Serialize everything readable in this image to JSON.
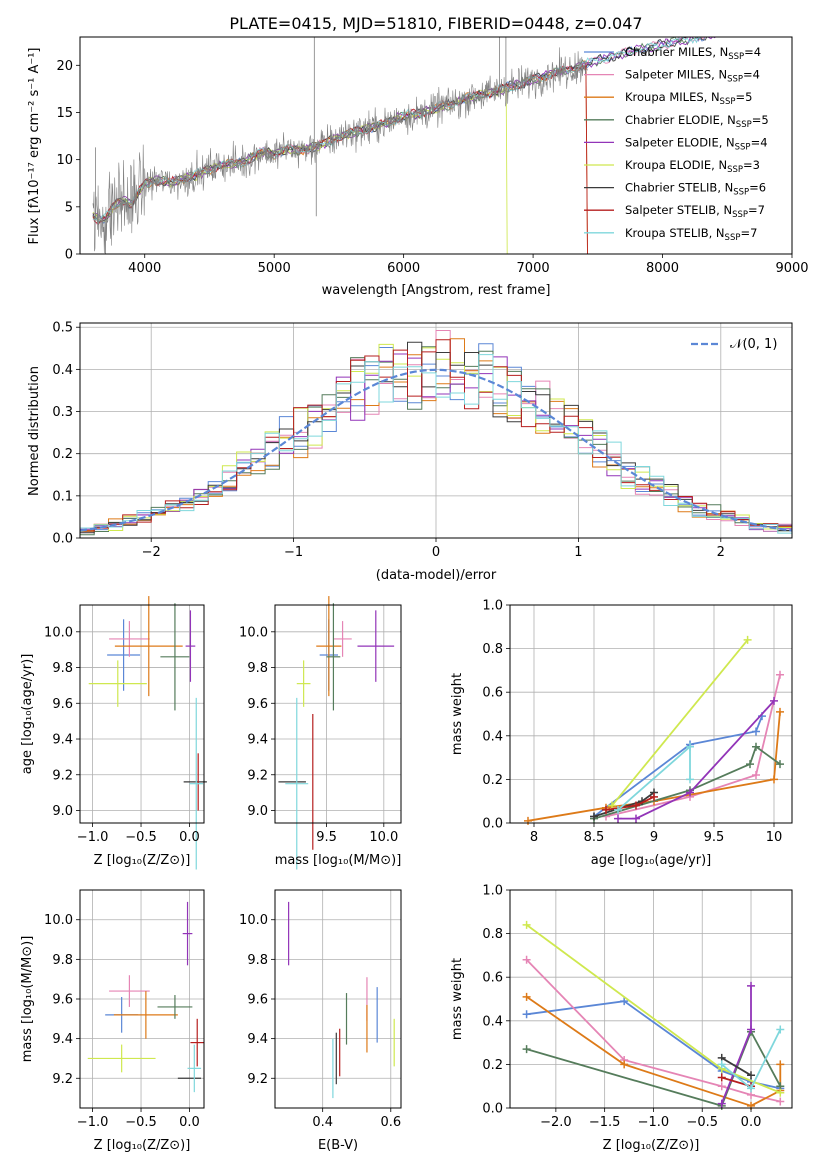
{
  "figure": {
    "title": "PLATE=0415, MJD=51810, FIBERID=0448, z=0.047"
  },
  "colors": {
    "Chabrier MILES": "#5b87d6",
    "Salpeter MILES": "#e585b5",
    "Kroupa MILES": "#dd7a18",
    "Chabrier ELODIE": "#557c5b",
    "Salpeter ELODIE": "#9234b8",
    "Kroupa ELODIE": "#cfe84f",
    "Chabrier STELIB": "#3b3b3b",
    "Salpeter STELIB": "#b61f1f",
    "Kroupa STELIB": "#7fd7dc",
    "data": "#808080",
    "gauss": "#5b87d6",
    "grid": "#b0b0b0"
  },
  "chart_data": [
    {
      "id": "spectrum",
      "type": "line",
      "title": "PLATE=0415, MJD=51810, FIBERID=0448, z=0.047",
      "xlabel": "wavelength [Angstrom, rest frame]",
      "ylabel": "Flux [fλ10⁻¹⁷ erg cm⁻² s⁻¹ A⁻¹]",
      "xlim": [
        3500,
        9000
      ],
      "ylim": [
        0,
        23
      ],
      "xticks": [
        4000,
        5000,
        6000,
        7000,
        8000,
        9000
      ],
      "yticks": [
        0,
        5,
        10,
        15,
        20
      ],
      "grid": false,
      "legend_position": "right",
      "legend": [
        {
          "series": "Chabrier MILES",
          "label": "Chabrier MILES, N",
          "sub": "SSP",
          "tail": "=4"
        },
        {
          "series": "Salpeter MILES",
          "label": "Salpeter MILES, N",
          "sub": "SSP",
          "tail": "=4"
        },
        {
          "series": "Kroupa MILES",
          "label": "Kroupa MILES, N",
          "sub": "SSP",
          "tail": "=5"
        },
        {
          "series": "Chabrier ELODIE",
          "label": "Chabrier ELODIE, N",
          "sub": "SSP",
          "tail": "=5"
        },
        {
          "series": "Salpeter ELODIE",
          "label": "Salpeter ELODIE, N",
          "sub": "SSP",
          "tail": "=4"
        },
        {
          "series": "Kroupa ELODIE",
          "label": "Kroupa ELODIE, N",
          "sub": "SSP",
          "tail": "=3"
        },
        {
          "series": "Chabrier STELIB",
          "label": "Chabrier STELIB, N",
          "sub": "SSP",
          "tail": "=6"
        },
        {
          "series": "Salpeter STELIB",
          "label": "Salpeter STELIB, N",
          "sub": "SSP",
          "tail": "=7"
        },
        {
          "series": "Kroupa STELIB",
          "label": "Kroupa STELIB, N",
          "sub": "SSP",
          "tail": "=7"
        }
      ],
      "continuum": {
        "x": [
          3600,
          3650,
          3700,
          3750,
          3800,
          3850,
          3900,
          3950,
          4000,
          4100,
          4200,
          4300,
          4400,
          4500,
          4600,
          4700,
          4800,
          4900,
          5000,
          5100,
          5200,
          5300,
          5400,
          5500,
          5600,
          5700,
          5800,
          5900,
          6000,
          6100,
          6200,
          6300,
          6400,
          6500,
          6600,
          6700,
          6800,
          6900,
          7000,
          7100,
          7200,
          7300,
          7400,
          7500,
          7600,
          7700,
          7800,
          7900,
          8000,
          8100,
          8200,
          8300
        ],
        "y": [
          4.0,
          3.6,
          3.8,
          4.8,
          5.5,
          5.6,
          5.2,
          6.5,
          7.5,
          7.8,
          7.6,
          7.9,
          8.4,
          9.0,
          9.5,
          9.5,
          10.0,
          10.8,
          10.6,
          11.2,
          11.0,
          11.3,
          11.8,
          12.4,
          12.9,
          13.2,
          13.6,
          14.0,
          14.7,
          14.8,
          15.2,
          15.7,
          16.0,
          16.6,
          16.9,
          17.2,
          17.7,
          18.0,
          18.5,
          18.9,
          19.3,
          19.6,
          20.1,
          20.5,
          20.9,
          21.3,
          21.6,
          21.9,
          22.2,
          22.5,
          22.8,
          23.1
        ]
      },
      "model_cutoffs": {
        "Kroupa ELODIE": 6800,
        "Salpeter STELIB": 7420,
        "Kroupa MILES": 7420
      },
      "data_spikes": [
        {
          "x": 3620,
          "y": 11.3
        },
        {
          "x": 5310,
          "y": 23.0
        },
        {
          "x": 5325,
          "y": 4.0
        },
        {
          "x": 6740,
          "y": 23.0
        },
        {
          "x": 6790,
          "y": 23.0
        }
      ]
    },
    {
      "id": "residuals",
      "type": "line",
      "xlabel": "(data-model)/error",
      "ylabel": "Normed distribution",
      "xlim": [
        -2.5,
        2.5
      ],
      "ylim": [
        0,
        0.51
      ],
      "xticks": [
        -2,
        -1,
        0,
        1,
        2
      ],
      "xticklabels": [
        "−2",
        "−1",
        "0",
        "1",
        "2"
      ],
      "yticks": [
        0.0,
        0.1,
        0.2,
        0.3,
        0.4,
        0.5
      ],
      "grid": true,
      "bin_width": 0.1,
      "legend_position": "top-right",
      "legend": [
        {
          "series": "gauss",
          "label": "𝒩(0, 1)"
        }
      ]
    },
    {
      "id": "Z-age",
      "type": "scatter",
      "xlabel": "Z [log₁₀(Z/Z⊙)]",
      "ylabel": "age  [log₁₀(age/yr)]",
      "xlim": [
        -1.13,
        0.15
      ],
      "ylim": [
        8.93,
        10.15
      ],
      "xticks": [
        -1.0,
        -0.5,
        0.0
      ],
      "xticklabels": [
        "−1.0",
        "−0.5",
        "0.0"
      ],
      "yticks": [
        9.0,
        9.2,
        9.4,
        9.6,
        9.8,
        10.0
      ],
      "grid": true,
      "points": [
        {
          "series": "Chabrier MILES",
          "x": -0.68,
          "y": 9.87,
          "xerr": 0.17,
          "yerr": 0.2
        },
        {
          "series": "Salpeter MILES",
          "x": -0.62,
          "y": 9.96,
          "xerr": 0.21,
          "yerr": 0.1
        },
        {
          "series": "Kroupa MILES",
          "x": -0.42,
          "y": 9.92,
          "xerr": 0.35,
          "yerr": 0.28
        },
        {
          "series": "Chabrier ELODIE",
          "x": -0.15,
          "y": 9.86,
          "xerr": 0.15,
          "yerr": 0.3
        },
        {
          "series": "Salpeter ELODIE",
          "x": 0.01,
          "y": 9.92,
          "xerr": 0.05,
          "yerr": 0.2
        },
        {
          "series": "Kroupa ELODIE",
          "x": -0.74,
          "y": 9.71,
          "xerr": 0.3,
          "yerr": 0.13
        },
        {
          "series": "Chabrier STELIB",
          "x": 0.06,
          "y": 9.16,
          "xerr": 0.12,
          "yerr": 0.0
        },
        {
          "series": "Salpeter STELIB",
          "x": 0.09,
          "y": 9.16,
          "xerr": 0.0,
          "yerr": 0.16
        },
        {
          "series": "Kroupa STELIB",
          "x": 0.07,
          "y": 9.15,
          "xerr": 0.07,
          "yerr": 0.48
        }
      ]
    },
    {
      "id": "mass-age",
      "type": "scatter",
      "xlabel": "mass [log₁₀(M/M⊙)]",
      "ylabel": "",
      "xlim": [
        9.05,
        10.15
      ],
      "ylim": [
        8.93,
        10.15
      ],
      "xticks": [
        9.5,
        10.0
      ],
      "xticklabels": [
        "9.5",
        "10.0"
      ],
      "yticks": [
        9.0,
        9.2,
        9.4,
        9.6,
        9.8,
        10.0
      ],
      "grid": true,
      "points": [
        {
          "series": "Chabrier MILES",
          "x": 9.52,
          "y": 9.87,
          "xerr": 0.08,
          "yerr": 0.2
        },
        {
          "series": "Salpeter MILES",
          "x": 9.64,
          "y": 9.96,
          "xerr": 0.08,
          "yerr": 0.1
        },
        {
          "series": "Kroupa MILES",
          "x": 9.52,
          "y": 9.92,
          "xerr": 0.11,
          "yerr": 0.28
        },
        {
          "series": "Chabrier ELODIE",
          "x": 9.56,
          "y": 9.86,
          "xerr": 0.06,
          "yerr": 0.3
        },
        {
          "series": "Salpeter ELODIE",
          "x": 9.93,
          "y": 9.92,
          "xerr": 0.16,
          "yerr": 0.2
        },
        {
          "series": "Kroupa ELODIE",
          "x": 9.3,
          "y": 9.71,
          "xerr": 0.06,
          "yerr": 0.13
        },
        {
          "series": "Chabrier STELIB",
          "x": 9.2,
          "y": 9.16,
          "xerr": 0.12,
          "yerr": 0.0
        },
        {
          "series": "Salpeter STELIB",
          "x": 9.38,
          "y": 9.16,
          "xerr": 0.0,
          "yerr": 0.38
        },
        {
          "series": "Kroupa STELIB",
          "x": 9.24,
          "y": 9.15,
          "xerr": 0.1,
          "yerr": 0.48
        }
      ]
    },
    {
      "id": "Z-mass",
      "type": "scatter",
      "xlabel": "Z [log₁₀(Z/Z⊙)]",
      "ylabel": "mass [log₁₀(M/M⊙)]",
      "xlim": [
        -1.13,
        0.15
      ],
      "ylim": [
        9.05,
        10.15
      ],
      "xticks": [
        -1.0,
        -0.5,
        0.0
      ],
      "xticklabels": [
        "−1.0",
        "−0.5",
        "0.0"
      ],
      "yticks": [
        9.2,
        9.4,
        9.6,
        9.8,
        10.0
      ],
      "grid": true,
      "points": [
        {
          "series": "Chabrier MILES",
          "x": -0.7,
          "y": 9.52,
          "xerr": 0.17,
          "yerr": 0.09
        },
        {
          "series": "Salpeter MILES",
          "x": -0.62,
          "y": 9.64,
          "xerr": 0.21,
          "yerr": 0.08
        },
        {
          "series": "Kroupa MILES",
          "x": -0.45,
          "y": 9.52,
          "xerr": 0.33,
          "yerr": 0.12
        },
        {
          "series": "Chabrier ELODIE",
          "x": -0.15,
          "y": 9.56,
          "xerr": 0.18,
          "yerr": 0.06
        },
        {
          "series": "Salpeter ELODIE",
          "x": -0.02,
          "y": 9.93,
          "xerr": 0.05,
          "yerr": 0.16
        },
        {
          "series": "Kroupa ELODIE",
          "x": -0.7,
          "y": 9.3,
          "xerr": 0.35,
          "yerr": 0.07
        },
        {
          "series": "Chabrier STELIB",
          "x": 0.0,
          "y": 9.2,
          "xerr": 0.12,
          "yerr": 0.0
        },
        {
          "series": "Salpeter STELIB",
          "x": 0.08,
          "y": 9.38,
          "xerr": 0.07,
          "yerr": 0.12
        },
        {
          "series": "Kroupa STELIB",
          "x": 0.05,
          "y": 9.25,
          "xerr": 0.07,
          "yerr": 0.12
        }
      ]
    },
    {
      "id": "EBV-mass",
      "type": "scatter",
      "xlabel": "E(B-V)",
      "ylabel": "",
      "xlim": [
        0.26,
        0.63
      ],
      "ylim": [
        9.05,
        10.15
      ],
      "xticks": [
        0.4,
        0.6
      ],
      "xticklabels": [
        "0.4",
        "0.6"
      ],
      "yticks": [
        9.2,
        9.4,
        9.6,
        9.8,
        10.0
      ],
      "grid": true,
      "points": [
        {
          "series": "Chabrier MILES",
          "x": 0.56,
          "y": 9.52,
          "xerr": 0.0,
          "yerr": 0.14
        },
        {
          "series": "Salpeter MILES",
          "x": 0.53,
          "y": 9.6,
          "xerr": 0.0,
          "yerr": 0.11
        },
        {
          "series": "Kroupa MILES",
          "x": 0.53,
          "y": 9.45,
          "xerr": 0.0,
          "yerr": 0.12
        },
        {
          "series": "Chabrier ELODIE",
          "x": 0.47,
          "y": 9.5,
          "xerr": 0.0,
          "yerr": 0.13
        },
        {
          "series": "Salpeter ELODIE",
          "x": 0.3,
          "y": 9.93,
          "xerr": 0.0,
          "yerr": 0.16
        },
        {
          "series": "Kroupa ELODIE",
          "x": 0.61,
          "y": 9.38,
          "xerr": 0.0,
          "yerr": 0.12
        },
        {
          "series": "Chabrier STELIB",
          "x": 0.44,
          "y": 9.3,
          "xerr": 0.0,
          "yerr": 0.13
        },
        {
          "series": "Salpeter STELIB",
          "x": 0.45,
          "y": 9.33,
          "xerr": 0.0,
          "yerr": 0.12
        },
        {
          "series": "Kroupa STELIB",
          "x": 0.43,
          "y": 9.25,
          "xerr": 0.0,
          "yerr": 0.15
        }
      ]
    },
    {
      "id": "age-weight",
      "type": "line",
      "xlabel": "age  [log₁₀(age/yr)]",
      "ylabel": "mass weight",
      "xlim": [
        7.8,
        10.15
      ],
      "ylim": [
        0,
        1.0
      ],
      "xticks": [
        8.0,
        8.5,
        9.0,
        9.5,
        10.0
      ],
      "yticks": [
        0.0,
        0.2,
        0.4,
        0.6,
        0.8,
        1.0
      ],
      "grid": true,
      "series": [
        {
          "name": "Chabrier MILES",
          "x": [
            8.5,
            9.3,
            9.85,
            9.9
          ],
          "y": [
            0.03,
            0.36,
            0.42,
            0.49
          ]
        },
        {
          "name": "Salpeter MILES",
          "x": [
            8.6,
            9.3,
            9.85,
            10.05
          ],
          "y": [
            0.03,
            0.12,
            0.22,
            0.68
          ]
        },
        {
          "name": "Kroupa MILES",
          "x": [
            7.95,
            8.6,
            9.0,
            10.0,
            10.05
          ],
          "y": [
            0.01,
            0.07,
            0.1,
            0.2,
            0.51
          ]
        },
        {
          "name": "Chabrier ELODIE",
          "x": [
            8.5,
            9.3,
            9.8,
            9.85,
            10.05
          ],
          "y": [
            0.02,
            0.15,
            0.27,
            0.35,
            0.27
          ]
        },
        {
          "name": "Salpeter ELODIE",
          "x": [
            8.7,
            8.85,
            9.3,
            10.0
          ],
          "y": [
            0.02,
            0.02,
            0.14,
            0.56
          ]
        },
        {
          "name": "Kroupa ELODIE",
          "x": [
            8.65,
            9.78
          ],
          "y": [
            0.08,
            0.84
          ]
        },
        {
          "name": "Chabrier STELIB",
          "x": [
            8.5,
            8.9,
            9.0
          ],
          "y": [
            0.03,
            0.1,
            0.14
          ]
        },
        {
          "name": "Salpeter STELIB",
          "x": [
            8.6,
            8.85,
            9.0
          ],
          "y": [
            0.06,
            0.08,
            0.12
          ]
        },
        {
          "name": "Kroupa STELIB",
          "x": [
            8.7,
            9.3,
            9.3
          ],
          "y": [
            0.06,
            0.35,
            0.2
          ]
        }
      ]
    },
    {
      "id": "Z-weight",
      "type": "line",
      "xlabel": "Z [log₁₀(Z/Z⊙)]",
      "ylabel": "mass weight",
      "xlim": [
        -2.47,
        0.42
      ],
      "ylim": [
        0,
        1.0
      ],
      "xticks": [
        -2.0,
        -1.5,
        -1.0,
        -0.5,
        0.0
      ],
      "xticklabels": [
        "−2.0",
        "−1.5",
        "−1.0",
        "−0.5",
        "0.0"
      ],
      "yticks": [
        0.0,
        0.2,
        0.4,
        0.6,
        0.8,
        1.0
      ],
      "grid": true,
      "series": [
        {
          "name": "Chabrier MILES",
          "x": [
            -2.3,
            -1.3,
            -0.3,
            0.0,
            0.3
          ],
          "y": [
            0.43,
            0.49,
            0.17,
            0.12,
            0.09
          ]
        },
        {
          "name": "Salpeter MILES",
          "x": [
            -2.3,
            -1.3,
            -0.3,
            0.0,
            0.3
          ],
          "y": [
            0.68,
            0.22,
            0.1,
            0.06,
            0.03
          ]
        },
        {
          "name": "Kroupa MILES",
          "x": [
            -2.3,
            -1.3,
            0.0,
            0.3,
            0.3
          ],
          "y": [
            0.51,
            0.2,
            0.01,
            0.08,
            0.2
          ]
        },
        {
          "name": "Chabrier ELODIE",
          "x": [
            -2.3,
            -0.3,
            0.0,
            0.3
          ],
          "y": [
            0.27,
            0.01,
            0.35,
            0.1
          ]
        },
        {
          "name": "Salpeter ELODIE",
          "x": [
            -0.3,
            0.0,
            0.0
          ],
          "y": [
            0.02,
            0.36,
            0.56
          ]
        },
        {
          "name": "Kroupa ELODIE",
          "x": [
            -2.3,
            -0.3,
            0.3
          ],
          "y": [
            0.84,
            0.18,
            0.07
          ]
        },
        {
          "name": "Chabrier STELIB",
          "x": [
            -0.3,
            0.0
          ],
          "y": [
            0.23,
            0.15
          ]
        },
        {
          "name": "Salpeter STELIB",
          "x": [
            -0.3,
            0.0
          ],
          "y": [
            0.14,
            0.1
          ]
        },
        {
          "name": "Kroupa STELIB",
          "x": [
            -0.3,
            0.0,
            0.3
          ],
          "y": [
            0.2,
            0.09,
            0.36
          ]
        }
      ]
    }
  ]
}
